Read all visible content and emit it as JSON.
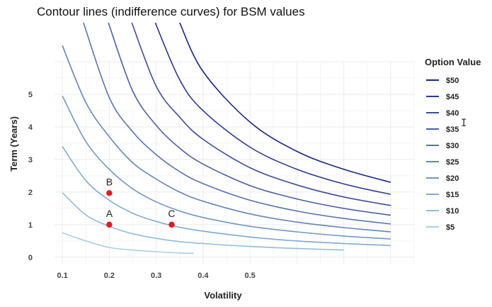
{
  "chart_data": {
    "type": "line",
    "title": "Contour lines (indifference curves) for BSM values",
    "xlabel": "Volatility",
    "ylabel": "Term (Years)",
    "xlim": [
      0.05,
      0.85
    ],
    "ylim": [
      -0.2,
      7.2
    ],
    "x_ticks": [
      0.1,
      0.2,
      0.3,
      0.4,
      0.5
    ],
    "y_ticks": [
      0,
      1,
      2,
      3,
      4,
      5
    ],
    "grid": true,
    "legend": {
      "title": "Option Value",
      "placement": "right"
    },
    "series": [
      {
        "name": "$5",
        "color": "#a8d0e4",
        "x": [
          0.1,
          0.15,
          0.2,
          0.25,
          0.3,
          0.35,
          0.38
        ],
        "y": [
          0.75,
          0.5,
          0.3,
          0.22,
          0.17,
          0.13,
          0.12
        ]
      },
      {
        "name": "$10",
        "color": "#8fbcdc",
        "x": [
          0.1,
          0.15,
          0.2,
          0.25,
          0.3,
          0.35,
          0.4,
          0.5,
          0.6,
          0.7
        ],
        "y": [
          1.98,
          1.3,
          0.95,
          0.72,
          0.58,
          0.48,
          0.42,
          0.33,
          0.27,
          0.22
        ]
      },
      {
        "name": "$15",
        "color": "#7fa9d2",
        "x": [
          0.1,
          0.15,
          0.2,
          0.25,
          0.3,
          0.35,
          0.4,
          0.5,
          0.6,
          0.7,
          0.8
        ],
        "y": [
          3.4,
          2.35,
          1.75,
          1.35,
          1.1,
          0.92,
          0.8,
          0.62,
          0.5,
          0.42,
          0.36
        ]
      },
      {
        "name": "$20",
        "color": "#7097c7",
        "x": [
          0.1,
          0.15,
          0.2,
          0.25,
          0.3,
          0.35,
          0.4,
          0.5,
          0.6,
          0.7,
          0.8
        ],
        "y": [
          4.95,
          3.55,
          2.7,
          2.1,
          1.7,
          1.42,
          1.22,
          0.95,
          0.78,
          0.65,
          0.56
        ]
      },
      {
        "name": "$25",
        "color": "#6385bb",
        "x": [
          0.1,
          0.15,
          0.2,
          0.25,
          0.3,
          0.35,
          0.4,
          0.5,
          0.6,
          0.7,
          0.8
        ],
        "y": [
          6.5,
          4.75,
          3.7,
          2.9,
          2.4,
          2.0,
          1.72,
          1.33,
          1.08,
          0.91,
          0.78
        ]
      },
      {
        "name": "$30",
        "color": "#5672ae",
        "x": [
          0.145,
          0.2,
          0.25,
          0.3,
          0.35,
          0.4,
          0.5,
          0.6,
          0.7,
          0.8
        ],
        "y": [
          7.2,
          4.9,
          3.85,
          3.15,
          2.63,
          2.26,
          1.75,
          1.42,
          1.19,
          1.02
        ]
      },
      {
        "name": "$35",
        "color": "#4960a2",
        "x": [
          0.198,
          0.25,
          0.3,
          0.35,
          0.4,
          0.5,
          0.6,
          0.7,
          0.8
        ],
        "y": [
          7.2,
          5.1,
          4.05,
          3.35,
          2.86,
          2.2,
          1.79,
          1.5,
          1.29
        ]
      },
      {
        "name": "$40",
        "color": "#3b4d96",
        "x": [
          0.248,
          0.3,
          0.35,
          0.4,
          0.5,
          0.6,
          0.7,
          0.8
        ],
        "y": [
          7.2,
          5.25,
          4.3,
          3.62,
          2.75,
          2.22,
          1.85,
          1.59
        ]
      },
      {
        "name": "$45",
        "color": "#2b3b8a",
        "x": [
          0.298,
          0.35,
          0.4,
          0.5,
          0.6,
          0.7,
          0.8
        ],
        "y": [
          7.2,
          5.45,
          4.5,
          3.38,
          2.7,
          2.25,
          1.93
        ]
      },
      {
        "name": "$50",
        "color": "#18287c",
        "x": [
          0.35,
          0.4,
          0.5,
          0.6,
          0.7,
          0.8
        ],
        "y": [
          7.2,
          5.7,
          4.15,
          3.25,
          2.7,
          2.3
        ]
      }
    ],
    "points": [
      {
        "label": "A",
        "x": 0.2,
        "y": 1.0,
        "color": "#e41a1c"
      },
      {
        "label": "B",
        "x": 0.2,
        "y": 1.97,
        "color": "#e41a1c"
      },
      {
        "label": "C",
        "x": 0.333,
        "y": 1.0,
        "color": "#e41a1c"
      }
    ]
  }
}
